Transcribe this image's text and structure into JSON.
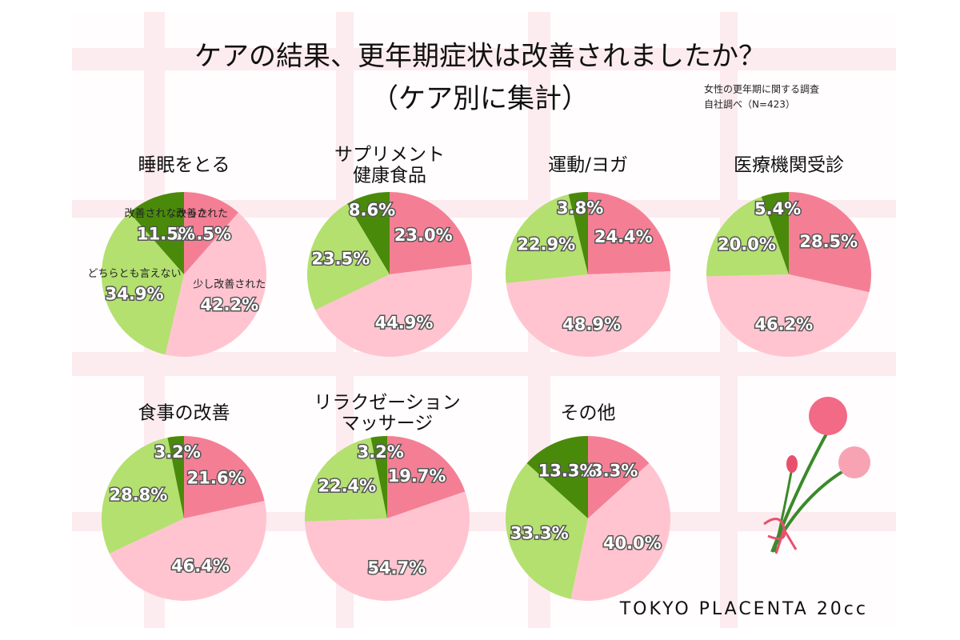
{
  "header": {
    "title": "ケアの結果、更年期症状は改善されましたか？",
    "subtitle": "（ケア別に集計）",
    "note": [
      "女性の更年期に関する調査",
      "自社調べ（N=423）"
    ],
    "brand": "TOKYO PLACENTA 20cc"
  },
  "chart_data": [
    {
      "type": "pie",
      "title": [
        "睡眠をとる"
      ],
      "categories": [
        "改善された",
        "少し改善された",
        "どちらとも言えない",
        "改善されなかった"
      ],
      "colors": [
        "#f47f95",
        "#ffc4d0",
        "#b3e06f",
        "#4a8a0a"
      ],
      "values": [
        11.5,
        42.2,
        34.9,
        11.5
      ],
      "value_labels": [
        "11.5%",
        "42.2%",
        "34.9%",
        "11.5%"
      ]
    },
    {
      "type": "pie",
      "title": [
        "サプリメント",
        "健康食品"
      ],
      "colors": [
        "#f47f95",
        "#ffc4d0",
        "#b3e06f",
        "#4a8a0a"
      ],
      "values": [
        23.0,
        44.9,
        23.5,
        8.6
      ],
      "value_labels": [
        "23.0%",
        "44.9%",
        "23.5%",
        "8.6%"
      ]
    },
    {
      "type": "pie",
      "title": [
        "運動/ヨガ"
      ],
      "colors": [
        "#f47f95",
        "#ffc4d0",
        "#b3e06f",
        "#4a8a0a"
      ],
      "values": [
        24.4,
        48.9,
        22.9,
        3.8
      ],
      "value_labels": [
        "24.4%",
        "48.9%",
        "22.9%",
        "3.8%"
      ]
    },
    {
      "type": "pie",
      "title": [
        "医療機関受診"
      ],
      "colors": [
        "#f47f95",
        "#ffc4d0",
        "#b3e06f",
        "#4a8a0a"
      ],
      "values": [
        28.5,
        46.2,
        20.0,
        5.4
      ],
      "value_labels": [
        "28.5%",
        "46.2%",
        "20.0%",
        "5.4%"
      ]
    },
    {
      "type": "pie",
      "title": [
        "食事の改善"
      ],
      "colors": [
        "#f47f95",
        "#ffc4d0",
        "#b3e06f",
        "#4a8a0a"
      ],
      "values": [
        21.6,
        46.4,
        28.8,
        3.2
      ],
      "value_labels": [
        "21.6%",
        "46.4%",
        "28.8%",
        "3.2%"
      ]
    },
    {
      "type": "pie",
      "title": [
        "リラクゼーション",
        "マッサージ"
      ],
      "colors": [
        "#f47f95",
        "#ffc4d0",
        "#b3e06f",
        "#4a8a0a"
      ],
      "values": [
        19.7,
        54.7,
        22.4,
        3.2
      ],
      "value_labels": [
        "19.7%",
        "54.7%",
        "22.4%",
        "3.2%"
      ]
    },
    {
      "type": "pie",
      "title": [
        "その他"
      ],
      "colors": [
        "#f47f95",
        "#ffc4d0",
        "#b3e06f",
        "#4a8a0a"
      ],
      "values": [
        13.3,
        40.0,
        33.3,
        13.3
      ],
      "value_labels": [
        "13.3%",
        "40.0%",
        "33.3%",
        "13.3%"
      ]
    }
  ]
}
